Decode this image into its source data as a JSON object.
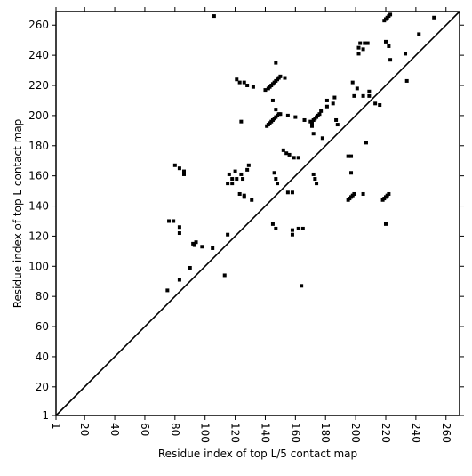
{
  "chart_data": {
    "type": "scatter",
    "xlabel": "Residue index of top L/5 contact map",
    "ylabel": "Residue index of top L contact map",
    "color": "#000000",
    "xlim": [
      1,
      269
    ],
    "ylim": [
      1,
      269
    ],
    "xticks": [
      1,
      20,
      40,
      60,
      80,
      100,
      120,
      140,
      160,
      180,
      200,
      220,
      240,
      260
    ],
    "yticks": [
      1,
      20,
      40,
      60,
      80,
      100,
      120,
      140,
      160,
      180,
      200,
      220,
      240,
      260
    ],
    "x": [
      76,
      79,
      80,
      83,
      86,
      86,
      83,
      83,
      75,
      83,
      90,
      92,
      93,
      94,
      98,
      105,
      113,
      115,
      106,
      115,
      116,
      118,
      118,
      120,
      121,
      123,
      124,
      125,
      126,
      128,
      129,
      131,
      126,
      121,
      123,
      126,
      128,
      132,
      124,
      140,
      142,
      143,
      144,
      145,
      146,
      147,
      148,
      149,
      150,
      141,
      142,
      143,
      144,
      145,
      146,
      147,
      148,
      149,
      150,
      147,
      153,
      145,
      147,
      146,
      147,
      148,
      145,
      147,
      152,
      154,
      156,
      159,
      162,
      155,
      158,
      158,
      158,
      162,
      165,
      164,
      155,
      160,
      166,
      170,
      171,
      172,
      173,
      174,
      175,
      176,
      177,
      171,
      172,
      172,
      173,
      174,
      178,
      181,
      181,
      185,
      186,
      187,
      188,
      195,
      197,
      197,
      198,
      199,
      201,
      202,
      202,
      203,
      205,
      206,
      208,
      205,
      209,
      209,
      213,
      216,
      219,
      220,
      221,
      222,
      223,
      222,
      223,
      233,
      234,
      242,
      252,
      220,
      195,
      196,
      197,
      198,
      199,
      218,
      219,
      220,
      221,
      222,
      207,
      205,
      220
    ],
    "values": [
      130,
      130,
      167,
      165,
      163,
      161,
      126,
      122,
      84,
      91,
      99,
      115,
      114,
      116,
      113,
      112,
      94,
      121,
      266,
      155,
      161,
      158,
      155,
      163,
      158,
      148,
      161,
      158,
      147,
      164,
      167,
      144,
      146,
      224,
      222,
      222,
      220,
      219,
      196,
      217,
      218,
      219,
      220,
      221,
      222,
      223,
      224,
      225,
      226,
      193,
      194,
      195,
      196,
      197,
      198,
      199,
      200,
      201,
      201,
      235,
      225,
      210,
      204,
      162,
      158,
      155,
      128,
      125,
      177,
      175,
      174,
      172,
      172,
      149,
      149,
      124,
      121,
      125,
      125,
      87,
      200,
      199,
      197,
      196,
      195,
      197,
      198,
      199,
      200,
      201,
      203,
      193,
      188,
      161,
      158,
      155,
      185,
      206,
      210,
      208,
      212,
      197,
      194,
      173,
      173,
      162,
      222,
      213,
      218,
      245,
      241,
      248,
      244,
      248,
      248,
      213,
      216,
      213,
      208,
      207,
      263,
      264,
      265,
      266,
      267,
      246,
      237,
      241,
      223,
      254,
      265,
      249,
      144,
      145,
      146,
      147,
      148,
      144,
      145,
      146,
      147,
      148,
      182,
      148,
      128
    ]
  }
}
